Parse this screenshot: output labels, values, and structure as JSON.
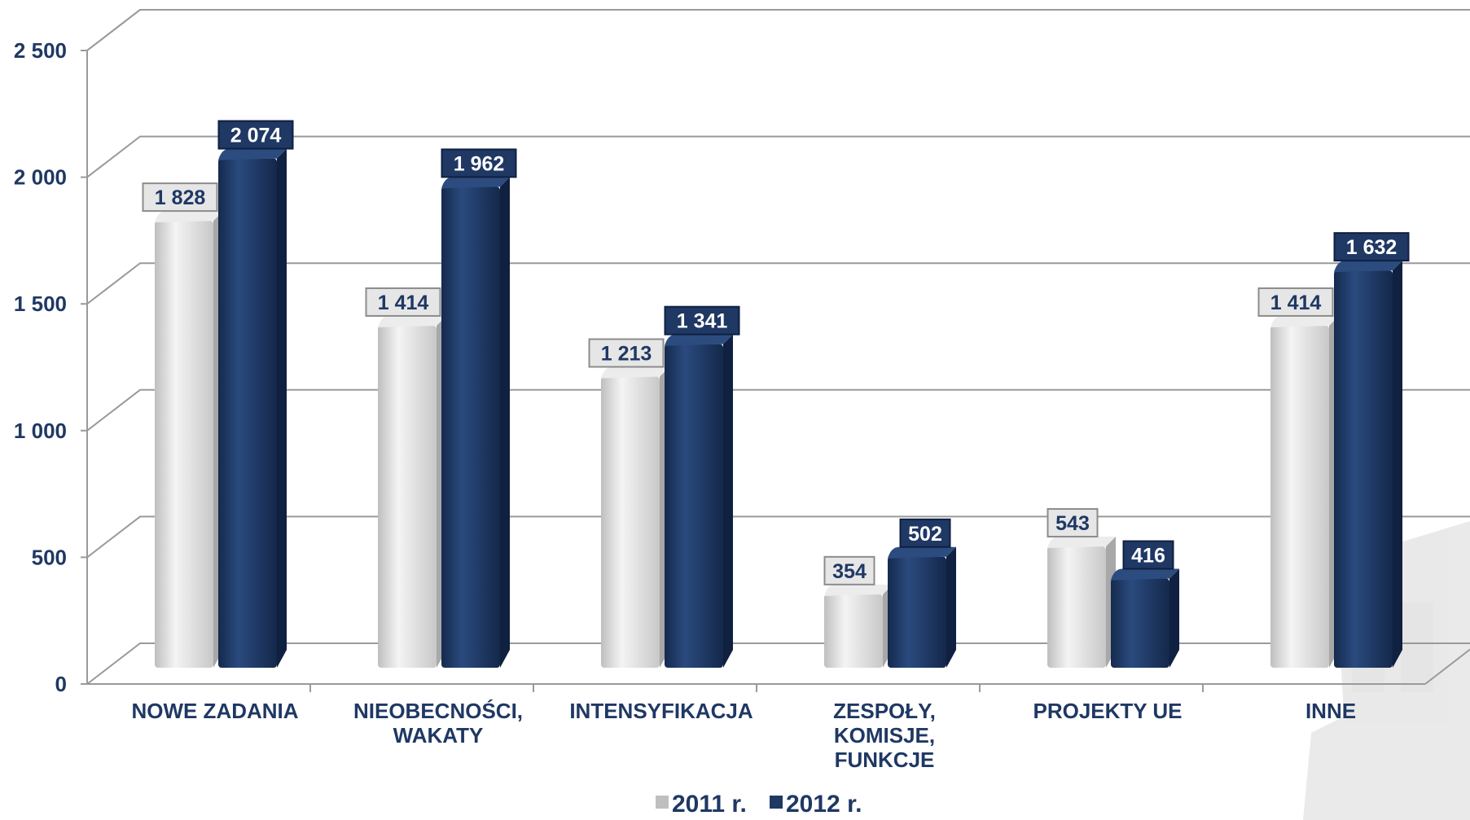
{
  "chart_data": {
    "type": "bar",
    "categories": [
      [
        "NOWE ZADANIA"
      ],
      [
        "NIEOBECNOŚCI,",
        "WAKATY"
      ],
      [
        "INTENSYFIKACJA"
      ],
      [
        "ZESPOŁY,",
        "KOMISJE,",
        "FUNKCJE"
      ],
      [
        "PROJEKTY UE"
      ],
      [
        "INNE"
      ]
    ],
    "series": [
      {
        "name": "2011 r.",
        "values": [
          1828,
          1414,
          1213,
          354,
          543,
          1414
        ],
        "labels": [
          "1 828",
          "1 414",
          "1 213",
          "354",
          "543",
          "1 414"
        ],
        "color": "#d9d9d9"
      },
      {
        "name": "2012 r.",
        "values": [
          2074,
          1962,
          1341,
          502,
          416,
          1632
        ],
        "labels": [
          "2 074",
          "1 962",
          "1 341",
          "502",
          "416",
          "1 632"
        ],
        "color": "#1f3864"
      }
    ],
    "yticks": [
      {
        "value": 0,
        "label": "0"
      },
      {
        "value": 500,
        "label": "500"
      },
      {
        "value": 1000,
        "label": "1 000"
      },
      {
        "value": 1500,
        "label": "1 500"
      },
      {
        "value": 2000,
        "label": "2 000"
      },
      {
        "value": 2500,
        "label": "2 500"
      }
    ],
    "ylim": [
      0,
      2500
    ],
    "grid": true,
    "legend_position": "bottom",
    "title": "",
    "xlabel": "",
    "ylabel": ""
  }
}
